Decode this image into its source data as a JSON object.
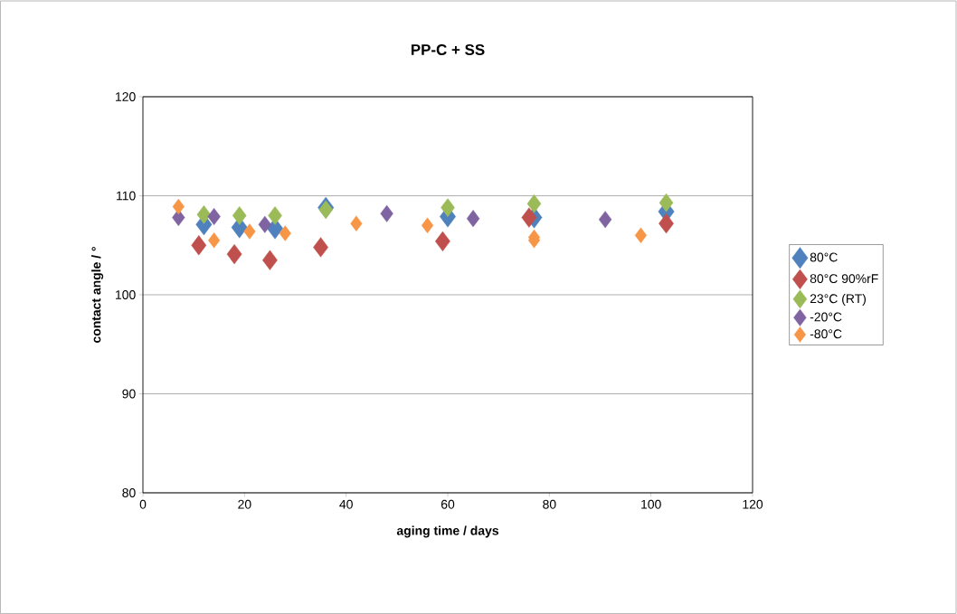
{
  "chart_data": {
    "type": "scatter",
    "title": "PP-C + SS",
    "xlabel": "aging time / days",
    "ylabel": "contact angle / °",
    "xlim": [
      0,
      120
    ],
    "xticks": [
      0,
      20,
      40,
      60,
      80,
      100,
      120
    ],
    "ylim": [
      80,
      120
    ],
    "yticks": [
      80,
      90,
      100,
      110,
      120
    ],
    "grid": "y",
    "legend": "right",
    "marker": "diamond",
    "series": [
      {
        "name": "80°C",
        "color": "#4f81bd",
        "x": [
          12,
          19,
          26,
          36,
          60,
          77,
          103
        ],
        "values": [
          107.1,
          106.8,
          106.7,
          108.8,
          107.9,
          107.8,
          108.4
        ]
      },
      {
        "name": "80°C 90%rF",
        "color": "#c0504d",
        "x": [
          11,
          18,
          25,
          35,
          59,
          76,
          103
        ],
        "values": [
          105.0,
          104.1,
          103.5,
          104.8,
          105.4,
          107.8,
          107.2
        ]
      },
      {
        "name": "23°C (RT)",
        "color": "#9bbb59",
        "x": [
          12,
          19,
          26,
          36,
          60,
          77,
          103
        ],
        "values": [
          108.1,
          108.0,
          108.0,
          108.6,
          108.8,
          109.2,
          109.3
        ]
      },
      {
        "name": "-20°C",
        "color": "#8064a2",
        "x": [
          7,
          14,
          24,
          48,
          65,
          91
        ],
        "values": [
          107.8,
          107.9,
          107.1,
          108.2,
          107.7,
          107.6
        ]
      },
      {
        "name": "-80°C",
        "color": "#f79646",
        "x": [
          7,
          14,
          21,
          28,
          42,
          56,
          77,
          77,
          98
        ],
        "values": [
          108.9,
          105.5,
          106.4,
          106.2,
          107.2,
          107.0,
          105.8,
          105.5,
          106.0
        ]
      }
    ]
  }
}
